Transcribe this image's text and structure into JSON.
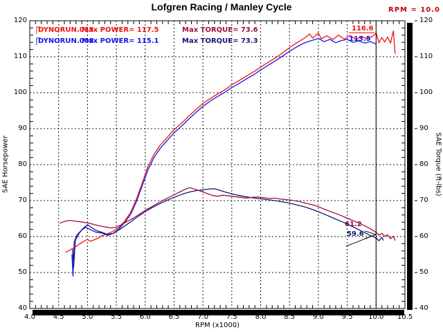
{
  "title": "Lofgren Racing / Manley Cycle",
  "cursor_readout": "RPM = 10.0",
  "colors": {
    "power_red": "#ee1111",
    "torque_maroon": "#991040",
    "power_blue": "#1414e6",
    "torque_navy": "#14147d",
    "readout_red": "#cc0000",
    "grid_black": "#111111"
  },
  "legend": {
    "rows": [
      {
        "run": "DYNORUN.013",
        "power": "Max POWER= 117.5",
        "torque": "Max TORQUE= 73.6"
      },
      {
        "run": "DYNORUN.008",
        "power": "Max POWER= 115.1",
        "torque": "Max TORQUE= 73.3"
      }
    ]
  },
  "axes": {
    "left_title": "SAE Horsepower",
    "right_title": "SAE Torque (ft-lbs)",
    "x_title": "RPM (x1000)",
    "y_ticks": [
      "120",
      "110",
      "100",
      "90",
      "80",
      "70",
      "60",
      "50",
      "40"
    ],
    "x_ticks": [
      "4.0",
      "4.5",
      "5.0",
      "5.5",
      "6.0",
      "6.5",
      "7.0",
      "7.5",
      "8.0",
      "8.5",
      "9.0",
      "9.5",
      "10.0",
      "10.5"
    ]
  },
  "chart_data": {
    "type": "line",
    "title": "Lofgren Racing / Manley Cycle",
    "xlabel": "RPM (x1000)",
    "ylabel_left": "SAE Horsepower",
    "ylabel_right": "SAE Torque (ft-lbs)",
    "xlim": [
      4.0,
      10.5
    ],
    "ylim": [
      40,
      120
    ],
    "grid": "dashed major gridlines both axes",
    "legend_position": "top-left inside plot",
    "cursor": {
      "rpm": 10.0,
      "labels": [
        {
          "id": "power_red",
          "text": "116.6",
          "color": "#ee1111"
        },
        {
          "id": "power_blue",
          "text": "113.5",
          "color": "#1414e6"
        },
        {
          "id": "torque_maroon",
          "text": "61.2",
          "color": "#991040"
        },
        {
          "id": "torque_navy",
          "text": "59.6",
          "color": "#14147d"
        }
      ]
    },
    "runs": [
      {
        "name": "DYNORUN.013",
        "max_power": 117.5,
        "max_torque": 73.6
      },
      {
        "name": "DYNORUN.008",
        "max_power": 115.1,
        "max_torque": 73.3
      }
    ],
    "series": [
      {
        "name": "DYNORUN.008 SAE Horsepower",
        "axis": "left",
        "color": "#1414e6",
        "points": [
          [
            4.73,
            55
          ],
          [
            4.75,
            49
          ],
          [
            4.77,
            58.5
          ],
          [
            4.82,
            60.5
          ],
          [
            4.9,
            61.8
          ],
          [
            4.97,
            62.6
          ],
          [
            5.05,
            61.9
          ],
          [
            5.15,
            61.2
          ],
          [
            5.25,
            61
          ],
          [
            5.35,
            60.3
          ],
          [
            5.45,
            60.9
          ],
          [
            5.55,
            62.2
          ],
          [
            5.65,
            64
          ],
          [
            5.75,
            66.2
          ],
          [
            5.85,
            69.8
          ],
          [
            5.95,
            74.2
          ],
          [
            6.05,
            78.6
          ],
          [
            6.15,
            81.9
          ],
          [
            6.25,
            84.3
          ],
          [
            6.35,
            86.2
          ],
          [
            6.5,
            88.8
          ],
          [
            6.65,
            91
          ],
          [
            6.75,
            92.6
          ],
          [
            6.9,
            94.8
          ],
          [
            7.0,
            96.2
          ],
          [
            7.15,
            97.9
          ],
          [
            7.25,
            98.9
          ],
          [
            7.4,
            100.3
          ],
          [
            7.5,
            101.4
          ],
          [
            7.65,
            102.8
          ],
          [
            7.75,
            103.8
          ],
          [
            7.9,
            105.2
          ],
          [
            8.0,
            106.3
          ],
          [
            8.15,
            107.8
          ],
          [
            8.25,
            108.8
          ],
          [
            8.4,
            110.4
          ],
          [
            8.5,
            111.5
          ],
          [
            8.6,
            112.5
          ],
          [
            8.75,
            113.8
          ],
          [
            8.9,
            114.6
          ],
          [
            9.0,
            115.1
          ],
          [
            9.1,
            114.2
          ],
          [
            9.2,
            114.8
          ],
          [
            9.3,
            113.9
          ],
          [
            9.4,
            114.5
          ],
          [
            9.5,
            114.8
          ],
          [
            9.6,
            114
          ],
          [
            9.7,
            114.4
          ],
          [
            9.8,
            113.8
          ],
          [
            9.9,
            114.2
          ],
          [
            10.0,
            113.5
          ]
        ]
      },
      {
        "name": "DYNORUN.008 SAE Torque",
        "axis": "right",
        "color": "#14147d",
        "points": [
          [
            4.74,
            56.5
          ],
          [
            4.76,
            51.5
          ],
          [
            4.79,
            59
          ],
          [
            4.85,
            60.8
          ],
          [
            4.92,
            62.2
          ],
          [
            5.0,
            63.3
          ],
          [
            5.07,
            62.5
          ],
          [
            5.15,
            61.7
          ],
          [
            5.25,
            61.2
          ],
          [
            5.35,
            60.6
          ],
          [
            5.45,
            60.9
          ],
          [
            5.55,
            61.9
          ],
          [
            5.65,
            63
          ],
          [
            5.75,
            64.1
          ],
          [
            5.85,
            65.3
          ],
          [
            5.95,
            66.4
          ],
          [
            6.05,
            67.4
          ],
          [
            6.15,
            68.3
          ],
          [
            6.25,
            69.1
          ],
          [
            6.35,
            69.9
          ],
          [
            6.5,
            70.9
          ],
          [
            6.6,
            71.5
          ],
          [
            6.7,
            72.1
          ],
          [
            6.8,
            72.5
          ],
          [
            6.9,
            72.8
          ],
          [
            7.0,
            73
          ],
          [
            7.1,
            73.2
          ],
          [
            7.2,
            73.3
          ],
          [
            7.3,
            72.8
          ],
          [
            7.4,
            72.3
          ],
          [
            7.5,
            71.9
          ],
          [
            7.6,
            71.5
          ],
          [
            7.7,
            71.2
          ],
          [
            7.8,
            70.9
          ],
          [
            7.9,
            70.7
          ],
          [
            8.0,
            70.5
          ],
          [
            8.15,
            70.2
          ],
          [
            8.25,
            70
          ],
          [
            8.4,
            69.6
          ],
          [
            8.5,
            69.3
          ],
          [
            8.65,
            68.7
          ],
          [
            8.75,
            68.3
          ],
          [
            8.9,
            67.5
          ],
          [
            9.0,
            66.9
          ],
          [
            9.15,
            65.9
          ],
          [
            9.25,
            65.2
          ],
          [
            9.4,
            64.2
          ],
          [
            9.5,
            63.5
          ],
          [
            9.65,
            62.3
          ],
          [
            9.75,
            61.5
          ],
          [
            9.9,
            60.3
          ],
          [
            10.0,
            59.6
          ],
          [
            10.05,
            58.8
          ],
          [
            10.1,
            59.8
          ],
          [
            10.13,
            58.9
          ]
        ]
      },
      {
        "name": "DYNORUN.013 SAE Horsepower",
        "axis": "left",
        "color": "#ee1111",
        "points": [
          [
            4.62,
            55.6
          ],
          [
            4.7,
            56.3
          ],
          [
            4.78,
            57
          ],
          [
            4.85,
            57.8
          ],
          [
            4.95,
            58.8
          ],
          [
            5.0,
            59.2
          ],
          [
            5.05,
            58.7
          ],
          [
            5.15,
            59.3
          ],
          [
            5.25,
            60.2
          ],
          [
            5.35,
            60.8
          ],
          [
            5.45,
            61.5
          ],
          [
            5.55,
            62.6
          ],
          [
            5.65,
            64.4
          ],
          [
            5.75,
            66.8
          ],
          [
            5.85,
            70.5
          ],
          [
            5.95,
            75
          ],
          [
            6.05,
            79.5
          ],
          [
            6.15,
            82.8
          ],
          [
            6.25,
            85.2
          ],
          [
            6.35,
            87
          ],
          [
            6.5,
            89.7
          ],
          [
            6.65,
            91.8
          ],
          [
            6.75,
            93.4
          ],
          [
            6.9,
            95.6
          ],
          [
            7.0,
            97
          ],
          [
            7.15,
            98.6
          ],
          [
            7.25,
            99.6
          ],
          [
            7.4,
            101
          ],
          [
            7.5,
            102.2
          ],
          [
            7.65,
            103.6
          ],
          [
            7.75,
            104.6
          ],
          [
            7.9,
            106
          ],
          [
            8.0,
            107.1
          ],
          [
            8.15,
            108.6
          ],
          [
            8.25,
            109.6
          ],
          [
            8.4,
            111.3
          ],
          [
            8.5,
            112.5
          ],
          [
            8.6,
            113.6
          ],
          [
            8.75,
            115.1
          ],
          [
            8.85,
            116.3
          ],
          [
            8.9,
            115.2
          ],
          [
            9.0,
            116.6
          ],
          [
            9.05,
            115
          ],
          [
            9.15,
            115.8
          ],
          [
            9.25,
            114.8
          ],
          [
            9.35,
            116
          ],
          [
            9.45,
            114.9
          ],
          [
            9.55,
            115.9
          ],
          [
            9.65,
            114.8
          ],
          [
            9.75,
            115.6
          ],
          [
            9.85,
            114.9
          ],
          [
            9.95,
            115.8
          ],
          [
            10.0,
            116.6
          ],
          [
            10.05,
            113.9
          ],
          [
            10.1,
            115.3
          ],
          [
            10.15,
            114.1
          ],
          [
            10.2,
            115.5
          ],
          [
            10.25,
            113.8
          ],
          [
            10.3,
            117.2
          ],
          [
            10.33,
            110.8
          ]
        ]
      },
      {
        "name": "DYNORUN.013 SAE Torque",
        "axis": "right",
        "color": "#991040",
        "points": [
          [
            4.52,
            63.7
          ],
          [
            4.6,
            64.2
          ],
          [
            4.68,
            64.5
          ],
          [
            4.78,
            64.3
          ],
          [
            4.88,
            64.1
          ],
          [
            5.0,
            63.8
          ],
          [
            5.1,
            63.4
          ],
          [
            5.2,
            63
          ],
          [
            5.3,
            62.7
          ],
          [
            5.4,
            62.4
          ],
          [
            5.5,
            62.6
          ],
          [
            5.6,
            63.4
          ],
          [
            5.7,
            64.3
          ],
          [
            5.8,
            65.2
          ],
          [
            5.9,
            66.2
          ],
          [
            6.0,
            67.3
          ],
          [
            6.1,
            68.2
          ],
          [
            6.2,
            69.1
          ],
          [
            6.3,
            70
          ],
          [
            6.4,
            70.8
          ],
          [
            6.5,
            71.6
          ],
          [
            6.6,
            72.4
          ],
          [
            6.7,
            73.2
          ],
          [
            6.78,
            73.6
          ],
          [
            6.85,
            73.2
          ],
          [
            6.95,
            72.7
          ],
          [
            7.05,
            72.1
          ],
          [
            7.15,
            71.5
          ],
          [
            7.25,
            71.2
          ],
          [
            7.35,
            71.5
          ],
          [
            7.45,
            71.3
          ],
          [
            7.55,
            71.1
          ],
          [
            7.65,
            70.9
          ],
          [
            7.75,
            70.7
          ],
          [
            7.85,
            70.9
          ],
          [
            7.95,
            71
          ],
          [
            8.05,
            70.8
          ],
          [
            8.15,
            70.6
          ],
          [
            8.25,
            70.7
          ],
          [
            8.35,
            70.4
          ],
          [
            8.5,
            70.2
          ],
          [
            8.65,
            69.8
          ],
          [
            8.75,
            69.4
          ],
          [
            8.9,
            68.8
          ],
          [
            9.0,
            68.3
          ],
          [
            9.15,
            67.3
          ],
          [
            9.25,
            66.7
          ],
          [
            9.4,
            65.8
          ],
          [
            9.5,
            65.1
          ],
          [
            9.65,
            64.1
          ],
          [
            9.75,
            63.4
          ],
          [
            9.9,
            62.2
          ],
          [
            10.0,
            61.2
          ],
          [
            10.05,
            60.4
          ],
          [
            10.1,
            60.9
          ],
          [
            10.15,
            60.1
          ],
          [
            10.2,
            60.5
          ],
          [
            10.25,
            59.4
          ],
          [
            10.3,
            60.1
          ],
          [
            10.33,
            58.9
          ]
        ]
      }
    ]
  }
}
